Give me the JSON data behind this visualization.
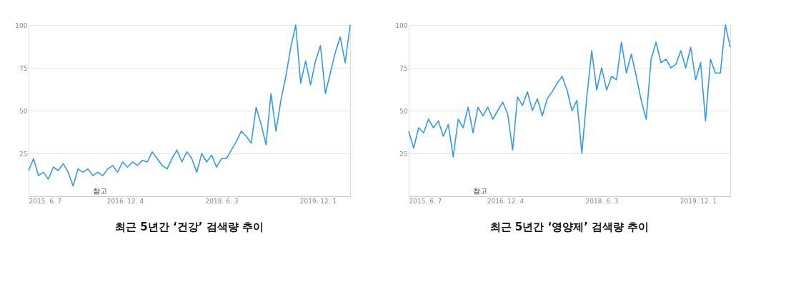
{
  "chart_data": [
    {
      "type": "line",
      "title": "최근 5년간 ‘건강’ 검색량 추이",
      "x": [
        "2015-06-07",
        "2015-07-05",
        "2015-08-02",
        "2015-08-30",
        "2015-09-27",
        "2015-10-25",
        "2015-11-22",
        "2015-12-20",
        "2016-01-17",
        "2016-02-14",
        "2016-03-13",
        "2016-04-10",
        "2016-05-08",
        "2016-06-05",
        "2016-07-03",
        "2016-07-31",
        "2016-08-28",
        "2016-09-25",
        "2016-10-23",
        "2016-11-20",
        "2016-12-18",
        "2017-01-15",
        "2017-02-12",
        "2017-03-12",
        "2017-04-09",
        "2017-05-07",
        "2017-06-04",
        "2017-07-02",
        "2017-07-30",
        "2017-08-27",
        "2017-09-24",
        "2017-10-22",
        "2017-11-19",
        "2017-12-17",
        "2018-01-14",
        "2018-02-11",
        "2018-03-11",
        "2018-04-08",
        "2018-05-06",
        "2018-06-03",
        "2018-07-01",
        "2018-07-29",
        "2018-08-26",
        "2018-09-23",
        "2018-10-21",
        "2018-11-18",
        "2018-12-16",
        "2019-01-13",
        "2019-02-10",
        "2019-03-10",
        "2019-04-07",
        "2019-05-05",
        "2019-06-02",
        "2019-06-30",
        "2019-07-28",
        "2019-08-25",
        "2019-09-22",
        "2019-10-20",
        "2019-11-17",
        "2019-12-15",
        "2020-01-12",
        "2020-02-09",
        "2020-03-08",
        "2020-04-05",
        "2020-05-03",
        "2020-05-31"
      ],
      "series": [
        {
          "color": "#3399ee",
          "values": [
            15,
            22,
            12,
            14,
            10,
            17,
            15,
            19,
            14,
            6,
            16,
            14,
            16,
            12,
            14,
            12,
            16,
            18,
            14,
            20,
            17,
            20,
            18,
            21,
            20,
            26,
            22,
            18,
            16,
            22,
            27,
            20,
            26,
            22,
            14,
            25,
            20,
            24,
            17,
            22,
            22,
            27,
            32,
            38,
            35,
            31,
            52,
            42,
            30,
            60,
            38,
            56,
            70,
            87,
            100,
            66,
            79,
            65,
            79,
            88,
            60,
            72,
            84,
            93,
            78,
            100
          ]
        }
      ],
      "xlim": [
        "2015-06-07",
        "2020-05-31"
      ],
      "xticks": [
        {
          "value": "2015-06-07",
          "label": "2015. 6. 7"
        },
        {
          "value": "2016-12-04",
          "label": "2016. 12. 4"
        },
        {
          "value": "2018-06-03",
          "label": "2018. 6. 3"
        },
        {
          "value": "2019-12-01",
          "label": "2019. 12. 1"
        }
      ],
      "ylim": [
        0,
        100
      ],
      "yticks": [
        25,
        50,
        75,
        100
      ],
      "grid": "y",
      "line_style": "solid",
      "annotations": [
        "참고"
      ]
    },
    {
      "type": "line",
      "title": "최근 5년간 ‘영양제’ 검색량 추이",
      "x": [
        "2015-06-07",
        "2015-07-05",
        "2015-08-02",
        "2015-08-30",
        "2015-09-27",
        "2015-10-25",
        "2015-11-22",
        "2015-12-20",
        "2016-01-17",
        "2016-02-14",
        "2016-03-13",
        "2016-04-10",
        "2016-05-08",
        "2016-06-05",
        "2016-07-03",
        "2016-07-31",
        "2016-08-28",
        "2016-09-25",
        "2016-10-23",
        "2016-11-20",
        "2016-12-18",
        "2017-01-15",
        "2017-02-12",
        "2017-03-12",
        "2017-04-09",
        "2017-05-07",
        "2017-06-04",
        "2017-07-02",
        "2017-07-30",
        "2017-08-27",
        "2017-09-24",
        "2017-10-22",
        "2017-11-19",
        "2017-12-17",
        "2018-01-14",
        "2018-02-11",
        "2018-03-11",
        "2018-04-08",
        "2018-05-06",
        "2018-06-03",
        "2018-07-01",
        "2018-07-29",
        "2018-08-26",
        "2018-09-23",
        "2018-10-21",
        "2018-11-18",
        "2018-12-16",
        "2019-01-13",
        "2019-02-10",
        "2019-03-10",
        "2019-04-07",
        "2019-05-05",
        "2019-06-02",
        "2019-06-30",
        "2019-07-28",
        "2019-08-25",
        "2019-09-22",
        "2019-10-20",
        "2019-11-17",
        "2019-12-15",
        "2020-01-12",
        "2020-02-09",
        "2020-03-08",
        "2020-04-05",
        "2020-05-03",
        "2020-05-31"
      ],
      "series": [
        {
          "color": "#3399ee",
          "values": [
            38,
            28,
            40,
            37,
            45,
            40,
            44,
            35,
            42,
            23,
            45,
            40,
            52,
            37,
            52,
            47,
            52,
            45,
            50,
            55,
            48,
            27,
            58,
            53,
            61,
            50,
            57,
            47,
            57,
            61,
            66,
            70,
            62,
            50,
            56,
            25,
            58,
            85,
            62,
            75,
            62,
            70,
            68,
            90,
            72,
            83,
            70,
            56,
            45,
            80,
            90,
            78,
            80,
            75,
            77,
            85,
            75,
            87,
            68,
            78,
            44,
            80,
            72,
            72,
            100,
            87
          ]
        }
      ],
      "xlim": [
        "2015-06-07",
        "2020-05-31"
      ],
      "xticks": [
        {
          "value": "2015-06-07",
          "label": "2015. 6. 7"
        },
        {
          "value": "2016-12-04",
          "label": "2016. 12. 4"
        },
        {
          "value": "2018-06-03",
          "label": "2018. 6. 3"
        },
        {
          "value": "2019-12-01",
          "label": "2019. 12. 1"
        }
      ],
      "ylim": [
        0,
        100
      ],
      "yticks": [
        25,
        50,
        75,
        100
      ],
      "grid": "y",
      "line_style": "solid",
      "annotations": [
        "참고"
      ]
    }
  ]
}
